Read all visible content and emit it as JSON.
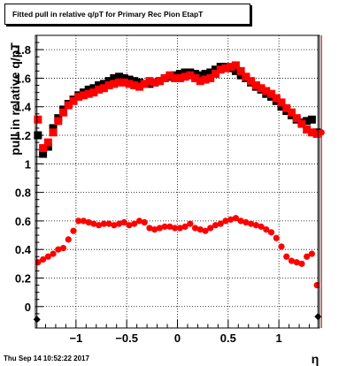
{
  "chart_data": {
    "type": "scatter",
    "title": "Fitted pull in relative q/pT for Primary Rec Pion EtapT",
    "xlabel": "η",
    "ylabel": "pull in relative q/pT",
    "timestamp": "Thu Sep 14 10:52:22 2017",
    "xlim": [
      -1.4,
      1.4
    ],
    "ylim": [
      -0.15,
      1.9
    ],
    "grid": true,
    "x_ticks": [
      "−1",
      "−0.5",
      "0",
      "0.5",
      "1"
    ],
    "x_tick_values": [
      -1,
      -0.5,
      0,
      0.5,
      1
    ],
    "y_ticks": [
      "0",
      "0.2",
      "0.4",
      "0.6",
      "0.8",
      "1",
      "1.2",
      "1.4",
      "1.6",
      "1.8"
    ],
    "y_tick_values": [
      0,
      0.2,
      0.4,
      0.6,
      0.8,
      1,
      1.2,
      1.4,
      1.6,
      1.8
    ],
    "x": [
      -1.375,
      -1.325,
      -1.275,
      -1.225,
      -1.175,
      -1.125,
      -1.075,
      -1.025,
      -0.975,
      -0.925,
      -0.875,
      -0.825,
      -0.775,
      -0.725,
      -0.675,
      -0.625,
      -0.575,
      -0.525,
      -0.475,
      -0.425,
      -0.375,
      -0.325,
      -0.275,
      -0.225,
      -0.175,
      -0.125,
      -0.075,
      -0.025,
      0.025,
      0.075,
      0.125,
      0.175,
      0.225,
      0.275,
      0.325,
      0.375,
      0.425,
      0.475,
      0.525,
      0.575,
      0.625,
      0.675,
      0.725,
      0.775,
      0.825,
      0.875,
      0.925,
      0.975,
      1.025,
      1.075,
      1.125,
      1.175,
      1.225,
      1.275,
      1.325,
      1.375
    ],
    "series": [
      {
        "color": "#000000",
        "marker": "square",
        "values": [
          1.2,
          1.07,
          1.12,
          1.25,
          1.32,
          1.38,
          1.42,
          1.45,
          1.48,
          1.5,
          1.52,
          1.53,
          1.55,
          1.56,
          1.58,
          1.6,
          1.61,
          1.6,
          1.59,
          1.58,
          1.57,
          1.56,
          1.56,
          1.57,
          1.58,
          1.6,
          1.61,
          1.62,
          1.63,
          1.64,
          1.64,
          1.63,
          1.62,
          1.63,
          1.64,
          1.66,
          1.68,
          1.68,
          1.67,
          1.65,
          1.62,
          1.6,
          1.57,
          1.54,
          1.52,
          1.49,
          1.47,
          1.44,
          1.4,
          1.37,
          1.34,
          1.31,
          1.29,
          1.3,
          1.31,
          1.22
        ]
      },
      {
        "color": "#ff0000",
        "marker": "square",
        "values": [
          1.31,
          1.11,
          1.15,
          1.22,
          1.3,
          1.36,
          1.41,
          1.44,
          1.47,
          1.48,
          1.49,
          1.5,
          1.52,
          1.53,
          1.55,
          1.56,
          1.57,
          1.57,
          1.56,
          1.55,
          1.54,
          1.56,
          1.58,
          1.57,
          1.58,
          1.6,
          1.62,
          1.6,
          1.6,
          1.61,
          1.62,
          1.6,
          1.58,
          1.59,
          1.6,
          1.63,
          1.66,
          1.67,
          1.68,
          1.69,
          1.65,
          1.61,
          1.58,
          1.55,
          1.53,
          1.51,
          1.49,
          1.46,
          1.43,
          1.39,
          1.36,
          1.32,
          1.28,
          1.24,
          1.22,
          1.21
        ]
      },
      {
        "color": "#ff0000",
        "marker": "circle",
        "values": [
          0.31,
          0.33,
          0.35,
          0.37,
          0.4,
          0.41,
          0.47,
          0.53,
          0.6,
          0.6,
          0.59,
          0.58,
          0.57,
          0.58,
          0.58,
          0.57,
          0.58,
          0.59,
          0.57,
          0.58,
          0.6,
          0.59,
          0.55,
          0.54,
          0.55,
          0.56,
          0.56,
          0.55,
          0.55,
          0.56,
          0.58,
          0.55,
          0.54,
          0.53,
          0.55,
          0.57,
          0.58,
          0.6,
          0.61,
          0.62,
          0.6,
          0.59,
          0.58,
          0.57,
          0.56,
          0.54,
          0.52,
          0.48,
          0.42,
          0.35,
          0.32,
          0.31,
          0.3,
          0.35,
          0.37,
          0.15
        ]
      }
    ],
    "edge_points": [
      {
        "x": -1.385,
        "y": -0.09,
        "color": "#000000",
        "marker": "diamond"
      },
      {
        "x": 1.385,
        "y": -0.07,
        "color": "#000000",
        "marker": "diamond"
      },
      {
        "x": 1.42,
        "y": 1.22,
        "color": "#ff0000",
        "marker": "circle"
      }
    ]
  }
}
